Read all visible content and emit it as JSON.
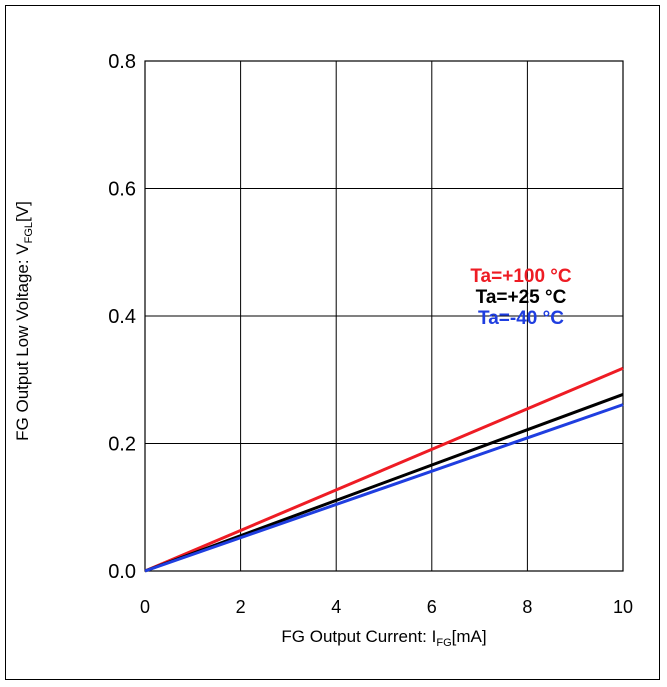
{
  "chart_data": {
    "type": "line",
    "title": "",
    "xlabel": {
      "prefix": "FG Output Current: I",
      "sub": "FG",
      "suffix": "[mA]"
    },
    "ylabel": {
      "prefix": "FG Output Low Voltage: V",
      "sub": "FGL",
      "suffix": "[V]"
    },
    "xlim": [
      0,
      10
    ],
    "ylim": [
      0,
      0.8
    ],
    "xticks": [
      0,
      2,
      4,
      6,
      8,
      10
    ],
    "yticks": [
      0.0,
      0.2,
      0.4,
      0.6,
      0.8
    ],
    "xtick_labels": [
      "0",
      "2",
      "4",
      "6",
      "8",
      "10"
    ],
    "ytick_labels": [
      "0.0",
      "0.2",
      "0.4",
      "0.6",
      "0.8"
    ],
    "grid": true,
    "legend_placement": "right-middle",
    "series": [
      {
        "name": "Ta=+100 °C",
        "color": "#ee1c24",
        "x": [
          0,
          10
        ],
        "y": [
          0,
          0.318
        ]
      },
      {
        "name": "Ta=+25 °C",
        "color": "#000000",
        "x": [
          0,
          10
        ],
        "y": [
          0,
          0.277
        ]
      },
      {
        "name": "Ta=-40 °C",
        "color": "#1f3ee0",
        "x": [
          0,
          10
        ],
        "y": [
          0,
          0.261
        ]
      }
    ]
  }
}
